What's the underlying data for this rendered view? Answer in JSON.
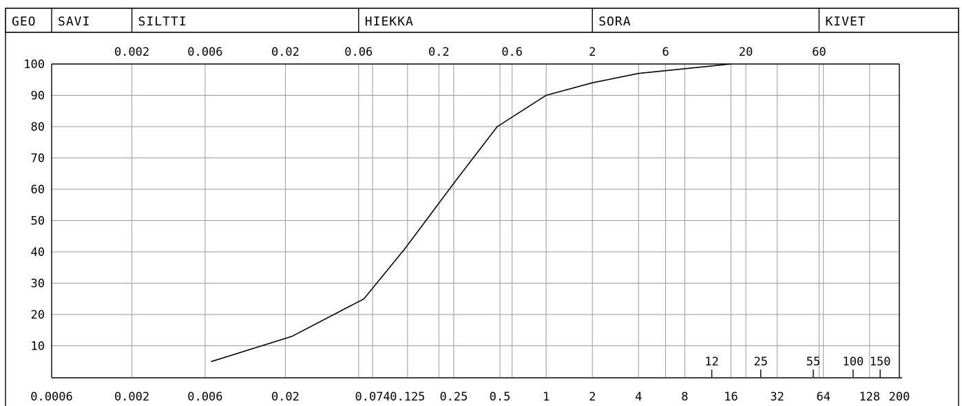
{
  "header": {
    "cells": [
      {
        "key": "geo",
        "label": "GEO",
        "right_size": null
      },
      {
        "key": "savi",
        "label": "SAVI",
        "right_size": 0.002
      },
      {
        "key": "siltti",
        "label": "SILTTI",
        "right_size": 0.06
      },
      {
        "key": "hiekka",
        "label": "HIEKKA",
        "right_size": 2
      },
      {
        "key": "sora",
        "label": "SORA",
        "right_size": 60
      },
      {
        "key": "kivet",
        "label": "KIVET",
        "right_size": null
      }
    ]
  },
  "chart_data": {
    "type": "line",
    "title": "",
    "xlabel": "",
    "ylabel": "",
    "x_scale": "log",
    "xlim": [
      0.0006,
      200
    ],
    "ylim": [
      0,
      100
    ],
    "grid": true,
    "y_ticks": [
      10,
      20,
      30,
      40,
      50,
      60,
      70,
      80,
      90,
      100
    ],
    "grid_lines_x": [
      0.002,
      0.006,
      0.02,
      0.06,
      0.074,
      0.125,
      0.2,
      0.25,
      0.5,
      0.6,
      1,
      2,
      4,
      6,
      8,
      16,
      20,
      32,
      60,
      64,
      128
    ],
    "top_ticks": [
      {
        "value": 0.002,
        "label": "0.002"
      },
      {
        "value": 0.006,
        "label": "0.006"
      },
      {
        "value": 0.02,
        "label": "0.02"
      },
      {
        "value": 0.06,
        "label": "0.06"
      },
      {
        "value": 0.2,
        "label": "0.2"
      },
      {
        "value": 0.6,
        "label": "0.6"
      },
      {
        "value": 2,
        "label": "2"
      },
      {
        "value": 6,
        "label": "6"
      },
      {
        "value": 20,
        "label": "20"
      },
      {
        "value": 60,
        "label": "60"
      }
    ],
    "bottom_ticks": [
      {
        "value": 0.0006,
        "label": "0.0006"
      },
      {
        "value": 0.002,
        "label": "0.002"
      },
      {
        "value": 0.006,
        "label": "0.006"
      },
      {
        "value": 0.02,
        "label": "0.02"
      },
      {
        "value": 0.074,
        "label": "0.074"
      },
      {
        "value": 0.125,
        "label": "0.125"
      },
      {
        "value": 0.25,
        "label": "0.25"
      },
      {
        "value": 0.5,
        "label": "0.5"
      },
      {
        "value": 1,
        "label": "1"
      },
      {
        "value": 2,
        "label": "2"
      },
      {
        "value": 4,
        "label": "4"
      },
      {
        "value": 8,
        "label": "8"
      },
      {
        "value": 16,
        "label": "16"
      },
      {
        "value": 32,
        "label": "32"
      },
      {
        "value": 64,
        "label": "64"
      },
      {
        "value": 128,
        "label": "128"
      },
      {
        "value": 200,
        "label": "200"
      }
    ],
    "inner_ticks": [
      {
        "value": 12,
        "label": "12"
      },
      {
        "value": 25,
        "label": "25"
      },
      {
        "value": 55,
        "label": "55"
      },
      {
        "value": 100,
        "label": "100"
      },
      {
        "value": 150,
        "label": "150"
      }
    ],
    "series": [
      {
        "x": [
          0.0066,
          0.022,
          0.065,
          0.12,
          0.26,
          0.48,
          1.0,
          2.0,
          4.0,
          16.0
        ],
        "y": [
          5,
          13,
          25,
          41,
          63,
          80,
          90,
          94,
          97,
          100
        ]
      }
    ]
  }
}
